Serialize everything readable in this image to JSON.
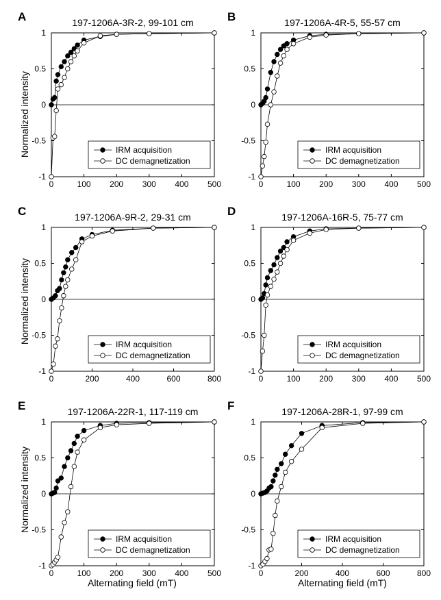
{
  "figure": {
    "ylabel": "Normalized intensity",
    "xlabel": "Alternating field (mT)"
  },
  "chart_data": [
    {
      "panel": "A",
      "type": "line",
      "title": "197-1206A-3R-2, 99-101 cm",
      "xlim": [
        0,
        500
      ],
      "ylim": [
        -1,
        1
      ],
      "xticks": [
        "0",
        "100",
        "200",
        "300",
        "400",
        "500"
      ],
      "yticks": [
        "-1",
        "-0.5",
        "0",
        "0.5",
        "1"
      ],
      "grid": false,
      "legend_position": "bottom-right",
      "series": [
        {
          "name": "IRM acquisition",
          "marker": "filled-circle",
          "x": [
            0,
            5,
            10,
            15,
            20,
            30,
            40,
            50,
            60,
            70,
            80,
            100,
            150,
            200,
            300,
            500
          ],
          "y": [
            0.0,
            0.08,
            0.1,
            0.33,
            0.42,
            0.53,
            0.6,
            0.68,
            0.73,
            0.78,
            0.83,
            0.9,
            0.95,
            0.98,
            0.99,
            1.0
          ]
        },
        {
          "name": "DC demagnetization",
          "marker": "open-circle",
          "x": [
            0,
            5,
            10,
            15,
            20,
            30,
            40,
            50,
            60,
            70,
            80,
            100,
            150,
            200,
            300,
            500
          ],
          "y": [
            -1.0,
            -0.46,
            -0.44,
            -0.08,
            0.22,
            0.28,
            0.38,
            0.5,
            0.6,
            0.68,
            0.75,
            0.86,
            0.96,
            0.98,
            0.99,
            1.0
          ]
        }
      ]
    },
    {
      "panel": "B",
      "type": "line",
      "title": "197-1206A-4R-5, 55-57 cm",
      "xlim": [
        0,
        500
      ],
      "ylim": [
        -1,
        1
      ],
      "xticks": [
        "0",
        "100",
        "200",
        "300",
        "400",
        "500"
      ],
      "yticks": [
        "-1",
        "-0.5",
        "0",
        "0.5",
        "1"
      ],
      "grid": false,
      "legend_position": "bottom-right",
      "series": [
        {
          "name": "IRM acquisition",
          "marker": "filled-circle",
          "x": [
            0,
            5,
            10,
            15,
            20,
            30,
            40,
            50,
            60,
            70,
            80,
            100,
            150,
            200,
            300,
            500
          ],
          "y": [
            0.0,
            0.02,
            0.05,
            0.1,
            0.22,
            0.45,
            0.6,
            0.7,
            0.77,
            0.82,
            0.85,
            0.9,
            0.96,
            0.98,
            0.99,
            1.0
          ]
        },
        {
          "name": "DC demagnetization",
          "marker": "open-circle",
          "x": [
            0,
            5,
            10,
            15,
            20,
            30,
            40,
            50,
            60,
            70,
            80,
            100,
            150,
            200,
            300,
            500
          ],
          "y": [
            -1.0,
            -0.85,
            -0.72,
            -0.52,
            -0.27,
            0.0,
            0.18,
            0.4,
            0.58,
            0.68,
            0.77,
            0.85,
            0.94,
            0.97,
            0.99,
            1.0
          ]
        }
      ]
    },
    {
      "panel": "C",
      "type": "line",
      "title": "197-1206A-9R-2, 29-31 cm",
      "xlim": [
        0,
        800
      ],
      "ylim": [
        -1,
        1
      ],
      "xticks": [
        "0",
        "200",
        "400",
        "600",
        "800"
      ],
      "yticks": [
        "-1",
        "-0.5",
        "0",
        "0.5",
        "1"
      ],
      "grid": false,
      "legend_position": "bottom-right",
      "series": [
        {
          "name": "IRM acquisition",
          "marker": "filled-circle",
          "x": [
            0,
            10,
            20,
            30,
            40,
            50,
            60,
            70,
            80,
            100,
            120,
            150,
            200,
            300,
            500,
            800
          ],
          "y": [
            0.0,
            0.02,
            0.05,
            0.12,
            0.15,
            0.27,
            0.37,
            0.45,
            0.55,
            0.65,
            0.72,
            0.84,
            0.9,
            0.96,
            0.99,
            1.0
          ]
        },
        {
          "name": "DC demagnetization",
          "marker": "open-circle",
          "x": [
            0,
            10,
            20,
            30,
            40,
            50,
            60,
            70,
            80,
            100,
            120,
            150,
            200,
            300,
            500,
            800
          ],
          "y": [
            -1.0,
            -0.9,
            -0.65,
            -0.55,
            -0.3,
            -0.12,
            0.05,
            0.18,
            0.27,
            0.42,
            0.55,
            0.8,
            0.88,
            0.95,
            0.99,
            1.0
          ]
        }
      ]
    },
    {
      "panel": "D",
      "type": "line",
      "title": "197-1206A-16R-5, 75-77 cm",
      "xlim": [
        0,
        500
      ],
      "ylim": [
        -1,
        1
      ],
      "xticks": [
        "0",
        "100",
        "200",
        "300",
        "400",
        "500"
      ],
      "yticks": [
        "-1",
        "-0.5",
        "0",
        "0.5",
        "1"
      ],
      "grid": false,
      "legend_position": "bottom-right",
      "series": [
        {
          "name": "IRM acquisition",
          "marker": "filled-circle",
          "x": [
            0,
            5,
            10,
            15,
            20,
            30,
            40,
            50,
            60,
            70,
            80,
            100,
            150,
            200,
            300,
            500
          ],
          "y": [
            0.0,
            0.02,
            0.08,
            0.2,
            0.3,
            0.4,
            0.48,
            0.58,
            0.67,
            0.72,
            0.8,
            0.87,
            0.95,
            0.98,
            0.99,
            1.0
          ]
        },
        {
          "name": "DC demagnetization",
          "marker": "open-circle",
          "x": [
            0,
            5,
            10,
            15,
            20,
            30,
            40,
            50,
            60,
            70,
            80,
            100,
            150,
            200,
            300,
            500
          ],
          "y": [
            -1.0,
            -0.72,
            -0.5,
            -0.08,
            0.06,
            0.18,
            0.28,
            0.38,
            0.5,
            0.6,
            0.69,
            0.82,
            0.92,
            0.97,
            0.99,
            1.0
          ]
        }
      ]
    },
    {
      "panel": "E",
      "type": "line",
      "title": "197-1206A-22R-1, 117-119 cm",
      "xlim": [
        0,
        500
      ],
      "ylim": [
        -1,
        1
      ],
      "xticks": [
        "0",
        "100",
        "200",
        "300",
        "400",
        "500"
      ],
      "yticks": [
        "-1",
        "-0.5",
        "0",
        "0.5",
        "1"
      ],
      "grid": false,
      "legend_position": "bottom-right",
      "series": [
        {
          "name": "IRM acquisition",
          "marker": "filled-circle",
          "x": [
            0,
            5,
            10,
            15,
            20,
            30,
            40,
            50,
            60,
            70,
            80,
            100,
            150,
            200,
            300,
            500
          ],
          "y": [
            0.0,
            0.01,
            0.02,
            0.08,
            0.18,
            0.22,
            0.38,
            0.5,
            0.6,
            0.7,
            0.8,
            0.88,
            0.95,
            0.98,
            0.99,
            1.0
          ]
        },
        {
          "name": "DC demagnetization",
          "marker": "open-circle",
          "x": [
            0,
            5,
            10,
            15,
            20,
            30,
            40,
            50,
            60,
            70,
            80,
            100,
            150,
            200,
            300,
            500
          ],
          "y": [
            -1.0,
            -0.98,
            -0.95,
            -0.92,
            -0.88,
            -0.6,
            -0.4,
            -0.25,
            0.1,
            0.38,
            0.58,
            0.75,
            0.92,
            0.96,
            0.98,
            1.0
          ]
        }
      ]
    },
    {
      "panel": "F",
      "type": "line",
      "title": "197-1206A-28R-1, 97-99 cm",
      "xlim": [
        0,
        800
      ],
      "ylim": [
        -1,
        1
      ],
      "xticks": [
        "0",
        "200",
        "400",
        "600",
        "800"
      ],
      "yticks": [
        "-1",
        "-0.5",
        "0",
        "0.5",
        "1"
      ],
      "grid": false,
      "legend_position": "bottom-right",
      "series": [
        {
          "name": "IRM acquisition",
          "marker": "filled-circle",
          "x": [
            0,
            10,
            20,
            30,
            40,
            50,
            60,
            70,
            80,
            100,
            120,
            150,
            200,
            300,
            500,
            800
          ],
          "y": [
            0.0,
            0.01,
            0.02,
            0.04,
            0.08,
            0.1,
            0.18,
            0.26,
            0.34,
            0.42,
            0.55,
            0.67,
            0.84,
            0.95,
            0.99,
            1.0
          ]
        },
        {
          "name": "DC demagnetization",
          "marker": "open-circle",
          "x": [
            0,
            10,
            20,
            30,
            40,
            50,
            60,
            70,
            80,
            100,
            120,
            150,
            200,
            300,
            500,
            800
          ],
          "y": [
            -1.0,
            -0.98,
            -0.94,
            -0.9,
            -0.78,
            -0.77,
            -0.55,
            -0.3,
            -0.1,
            0.1,
            0.3,
            0.45,
            0.62,
            0.92,
            0.98,
            1.0
          ]
        }
      ]
    }
  ]
}
